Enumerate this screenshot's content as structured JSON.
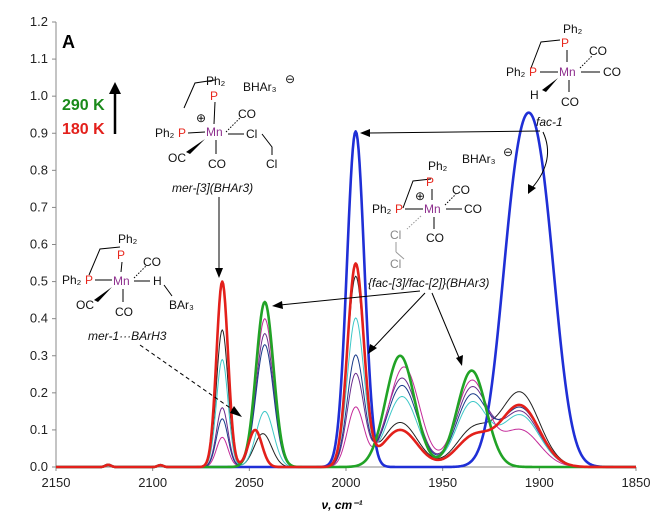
{
  "chart_data": {
    "type": "line",
    "panel_label": "A",
    "xlabel": "ν, cm⁻¹",
    "xlim": [
      2150,
      1850
    ],
    "ylim": [
      0,
      1.2
    ],
    "x_ticks": [
      2150,
      2100,
      2050,
      2000,
      1950,
      1900,
      1850
    ],
    "y_ticks": [
      0,
      0.1,
      0.2,
      0.3,
      0.4,
      0.5,
      0.6,
      0.7,
      0.8,
      0.9,
      1.0,
      1.1,
      1.2
    ],
    "y_tick_labels": [
      "0.0",
      "0.1",
      "0.2",
      "0.3",
      "0.4",
      "0.5",
      "0.6",
      "0.7",
      "0.8",
      "0.9",
      "1.0",
      "1.1",
      "1.2"
    ],
    "x_tick_labels": [
      "2150",
      "2100",
      "2050",
      "2000",
      "1950",
      "1900",
      "1850"
    ],
    "temperature_legend": {
      "high": "290 K",
      "low": "180 K",
      "high_color": "#1a8a1a",
      "low_color": "#e3201b"
    },
    "series": [
      {
        "name": "fac-1",
        "color": "#1f2fd6",
        "width": 2.6,
        "peaks": [
          [
            1995,
            0.905,
            4.5
          ],
          [
            1912,
            0.64,
            8.5
          ],
          [
            1899,
            0.64,
            8.5
          ]
        ]
      },
      {
        "name": "290 K",
        "color": "#21a326",
        "width": 2.6,
        "peaks": [
          [
            2042,
            0.445,
            4.5
          ],
          [
            1972,
            0.3,
            7.5
          ],
          [
            1935,
            0.26,
            7.5
          ]
        ]
      },
      {
        "name": "180 K",
        "color": "#e3201b",
        "width": 2.6,
        "peaks": [
          [
            2064,
            0.5,
            3.0
          ],
          [
            2047,
            0.1,
            3.5
          ],
          [
            1995,
            0.545,
            4.2
          ],
          [
            1972,
            0.1,
            9
          ],
          [
            1934,
            0.08,
            9
          ],
          [
            1910,
            0.165,
            10
          ]
        ]
      },
      {
        "color": "#222222",
        "width": 1.0,
        "peaks": [
          [
            2064,
            0.37,
            3.0
          ],
          [
            2043,
            0.09,
            4.5
          ],
          [
            1995,
            0.51,
            4.3
          ],
          [
            1972,
            0.12,
            9
          ],
          [
            1934,
            0.1,
            9
          ],
          [
            1910,
            0.2,
            10
          ]
        ]
      },
      {
        "color": "#6a2d8c",
        "width": 1.0,
        "peaks": [
          [
            2064,
            0.16,
            3.0
          ],
          [
            2042,
            0.36,
            4.5
          ],
          [
            1995,
            0.25,
            4.3
          ],
          [
            1971,
            0.24,
            8
          ],
          [
            1935,
            0.21,
            8
          ],
          [
            1910,
            0.15,
            10
          ]
        ]
      },
      {
        "color": "#3fc8c8",
        "width": 1.0,
        "peaks": [
          [
            2064,
            0.29,
            3.0
          ],
          [
            2042,
            0.15,
            4.5
          ],
          [
            1995,
            0.4,
            4.3
          ],
          [
            1971,
            0.19,
            8
          ],
          [
            1935,
            0.17,
            8
          ],
          [
            1910,
            0.14,
            10
          ]
        ]
      },
      {
        "color": "#c42b9a",
        "width": 1.0,
        "peaks": [
          [
            2064,
            0.08,
            3.0
          ],
          [
            2042,
            0.4,
            4.5
          ],
          [
            1995,
            0.16,
            4.3
          ],
          [
            1970,
            0.27,
            8
          ],
          [
            1935,
            0.23,
            8
          ],
          [
            1910,
            0.1,
            10
          ]
        ]
      },
      {
        "color": "#1a3b8a",
        "width": 1.0,
        "peaks": [
          [
            2064,
            0.13,
            3.0
          ],
          [
            2042,
            0.33,
            4.5
          ],
          [
            1995,
            0.3,
            4.3
          ],
          [
            1971,
            0.22,
            8
          ],
          [
            1935,
            0.19,
            8
          ],
          [
            1910,
            0.16,
            10
          ]
        ]
      }
    ],
    "annotations": {
      "mer1_label": "mer-1···BArH3",
      "mer3_label": "mer-[3](BHAr3)",
      "fac_label": "{fac-[3]/fac-[2]}(BHAr3)",
      "fac1_label": "fac-1"
    }
  },
  "structures": {
    "ph2": "Ph₂",
    "p": "P",
    "mn": "Mn",
    "co": "CO",
    "oc": "OC",
    "h": "H",
    "cl": "Cl",
    "plus": "⊕",
    "minus": "⊖",
    "borate": "BHAr₃",
    "bar3": "BAr₃"
  }
}
